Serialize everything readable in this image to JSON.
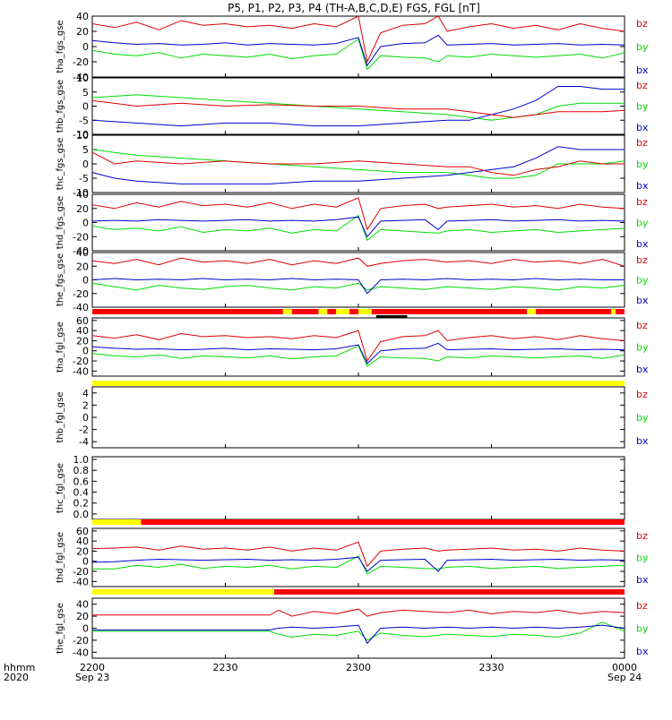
{
  "title": "P5, P1, P2, P3, P4 (TH-A,B,C,D,E) FGS, FGL [nT]",
  "footer": {
    "row_label_1": "hhmm",
    "row_label_2": "2020",
    "date_left": "Sep 23",
    "date_right": "Sep 24"
  },
  "colors": {
    "bx": "#0000cc",
    "by": "#00dd00",
    "bz": "#dd0000",
    "bar_red": "#ff0000",
    "bar_yellow": "#ffff00",
    "axis": "#000000"
  },
  "chart_data": [
    {
      "type": "line",
      "panel": "tha_fgs_gse",
      "ylabel": "tha_fgs_gse",
      "ylim": [
        -40,
        40
      ],
      "yticks": [
        40,
        20,
        0,
        -20,
        -40
      ],
      "legend": [
        "bz",
        "by",
        "bx"
      ],
      "x_minutes": [
        0,
        5,
        10,
        15,
        20,
        25,
        30,
        35,
        40,
        45,
        50,
        55,
        60,
        62,
        65,
        70,
        75,
        78,
        80,
        85,
        90,
        95,
        100,
        105,
        110,
        115,
        120
      ],
      "series": [
        {
          "name": "bz",
          "values": [
            30,
            25,
            32,
            22,
            34,
            28,
            30,
            26,
            28,
            24,
            30,
            26,
            40,
            -20,
            18,
            28,
            30,
            40,
            20,
            26,
            30,
            24,
            28,
            22,
            30,
            24,
            20
          ]
        },
        {
          "name": "by",
          "values": [
            -5,
            -10,
            -12,
            -8,
            -15,
            -10,
            -12,
            -14,
            -10,
            -16,
            -12,
            -10,
            10,
            -30,
            -12,
            -14,
            -15,
            -20,
            -12,
            -14,
            -10,
            -12,
            -14,
            -12,
            -10,
            -15,
            -8
          ]
        },
        {
          "name": "bx",
          "values": [
            8,
            5,
            3,
            4,
            2,
            3,
            5,
            2,
            4,
            3,
            2,
            4,
            12,
            -25,
            0,
            4,
            5,
            15,
            2,
            3,
            4,
            2,
            3,
            4,
            2,
            3,
            2
          ]
        }
      ]
    },
    {
      "type": "line",
      "panel": "thb_fgs_gse",
      "ylabel": "thb_fgs_gse",
      "ylim": [
        -10,
        10
      ],
      "yticks": [
        10,
        5,
        0,
        -5,
        -10
      ],
      "legend": [
        "bz",
        "by",
        "bx"
      ],
      "x_minutes": [
        0,
        10,
        20,
        30,
        40,
        50,
        60,
        70,
        80,
        85,
        90,
        95,
        100,
        105,
        110,
        115,
        120
      ],
      "series": [
        {
          "name": "bz",
          "values": [
            2,
            0,
            1,
            0,
            0.5,
            0,
            0,
            -1,
            -1,
            -2,
            -3,
            -4,
            -3,
            -2,
            -2,
            -2,
            -1.5
          ]
        },
        {
          "name": "by",
          "values": [
            3,
            4,
            3,
            2,
            1,
            0,
            -1,
            -2,
            -3,
            -4,
            -5,
            -4,
            -3,
            0,
            1,
            1,
            1
          ]
        },
        {
          "name": "bx",
          "values": [
            -5,
            -6,
            -7,
            -6,
            -6,
            -7,
            -7,
            -6,
            -5,
            -5,
            -3,
            -1,
            2,
            7,
            7,
            6,
            6
          ]
        }
      ]
    },
    {
      "type": "line",
      "panel": "thc_fgs_gse",
      "ylabel": "thc_fgs_gse",
      "ylim": [
        -10,
        10
      ],
      "yticks": [
        10,
        5,
        0,
        -5,
        -10
      ],
      "legend": [
        "bz",
        "by",
        "bx"
      ],
      "x_minutes": [
        0,
        5,
        10,
        20,
        30,
        40,
        50,
        60,
        70,
        80,
        85,
        90,
        95,
        100,
        105,
        110,
        115,
        120
      ],
      "series": [
        {
          "name": "bz",
          "values": [
            4,
            0,
            1,
            0,
            1,
            0,
            0,
            1,
            0,
            -1,
            -1,
            -3,
            -4,
            -2,
            -1,
            1,
            0,
            0
          ]
        },
        {
          "name": "by",
          "values": [
            5,
            4,
            3,
            2,
            1,
            0,
            -1,
            -2,
            -3,
            -3,
            -4,
            -5,
            -5,
            -4,
            0,
            0,
            0,
            1
          ]
        },
        {
          "name": "bx",
          "values": [
            -3,
            -5,
            -6,
            -7,
            -7,
            -7,
            -6,
            -6,
            -5,
            -4,
            -3,
            -2,
            -1,
            2,
            6,
            5,
            5,
            5
          ]
        }
      ]
    },
    {
      "type": "line",
      "panel": "thd_fgs_gse",
      "ylabel": "thd_fgs_gse",
      "ylim": [
        -40,
        40
      ],
      "yticks": [
        40,
        20,
        0,
        -20,
        -40
      ],
      "legend": [
        "bz",
        "by",
        "bx"
      ],
      "x_minutes": [
        0,
        5,
        10,
        15,
        20,
        25,
        30,
        35,
        40,
        45,
        50,
        55,
        60,
        62,
        65,
        70,
        75,
        78,
        80,
        85,
        90,
        95,
        100,
        105,
        110,
        115,
        120
      ],
      "series": [
        {
          "name": "bz",
          "values": [
            25,
            20,
            28,
            22,
            30,
            24,
            26,
            22,
            28,
            20,
            26,
            22,
            35,
            -10,
            20,
            24,
            26,
            20,
            22,
            24,
            26,
            22,
            24,
            20,
            26,
            22,
            20
          ]
        },
        {
          "name": "by",
          "values": [
            -5,
            -10,
            -8,
            -12,
            -6,
            -14,
            -10,
            -12,
            -8,
            -15,
            -10,
            -12,
            10,
            -25,
            -10,
            -12,
            -14,
            -15,
            -12,
            -10,
            -14,
            -12,
            -10,
            -14,
            -12,
            -10,
            -8
          ]
        },
        {
          "name": "bx",
          "values": [
            2,
            3,
            2,
            4,
            3,
            2,
            3,
            4,
            2,
            3,
            2,
            4,
            8,
            -20,
            2,
            3,
            4,
            -10,
            2,
            3,
            4,
            2,
            3,
            4,
            2,
            3,
            2
          ]
        }
      ]
    },
    {
      "type": "line",
      "panel": "the_fgs_gse",
      "ylabel": "the_fgs_gse",
      "ylim": [
        -40,
        40
      ],
      "yticks": [
        40,
        20,
        0,
        -20,
        -40
      ],
      "legend": [
        "bz",
        "by",
        "bx"
      ],
      "x_minutes": [
        0,
        5,
        10,
        15,
        20,
        25,
        30,
        35,
        40,
        45,
        50,
        55,
        60,
        62,
        65,
        70,
        75,
        80,
        85,
        90,
        95,
        100,
        105,
        110,
        115,
        120
      ],
      "series": [
        {
          "name": "bz",
          "values": [
            28,
            24,
            30,
            22,
            32,
            26,
            28,
            24,
            30,
            22,
            28,
            24,
            32,
            20,
            24,
            28,
            30,
            26,
            28,
            24,
            30,
            26,
            28,
            24,
            30,
            20
          ]
        },
        {
          "name": "by",
          "values": [
            -5,
            -10,
            -15,
            -8,
            -12,
            -14,
            -10,
            -8,
            -12,
            -15,
            -10,
            -12,
            -5,
            -15,
            -10,
            -12,
            -14,
            -10,
            -12,
            -14,
            -10,
            -12,
            -15,
            -10,
            -12,
            -8
          ]
        },
        {
          "name": "bx",
          "values": [
            0,
            2,
            0,
            1,
            0,
            2,
            0,
            1,
            0,
            2,
            0,
            1,
            0,
            -20,
            0,
            1,
            0,
            2,
            0,
            1,
            0,
            2,
            0,
            1,
            0,
            0
          ]
        }
      ]
    },
    {
      "type": "line",
      "panel": "tha_fgl_gse",
      "ylabel": "tha_fgl_gse",
      "ylim": [
        -50,
        65
      ],
      "yticks": [
        60,
        40,
        20,
        0,
        -20,
        -40
      ],
      "legend": [
        "bz",
        "by",
        "bx"
      ],
      "x_minutes": [
        0,
        5,
        10,
        15,
        20,
        25,
        30,
        35,
        40,
        45,
        50,
        55,
        60,
        62,
        65,
        70,
        75,
        78,
        80,
        85,
        90,
        95,
        100,
        105,
        110,
        115,
        120
      ],
      "series": [
        {
          "name": "bz",
          "values": [
            30,
            25,
            32,
            22,
            34,
            28,
            30,
            26,
            28,
            24,
            30,
            26,
            40,
            -20,
            18,
            28,
            30,
            40,
            20,
            26,
            30,
            24,
            28,
            22,
            30,
            24,
            20
          ]
        },
        {
          "name": "by",
          "values": [
            -5,
            -10,
            -12,
            -8,
            -15,
            -10,
            -12,
            -14,
            -10,
            -16,
            -12,
            -10,
            10,
            -30,
            -12,
            -14,
            -15,
            -20,
            -12,
            -14,
            -10,
            -12,
            -14,
            -12,
            -10,
            -15,
            -8
          ]
        },
        {
          "name": "bx",
          "values": [
            8,
            5,
            3,
            4,
            2,
            3,
            5,
            2,
            4,
            3,
            2,
            4,
            12,
            -25,
            0,
            4,
            5,
            15,
            2,
            3,
            4,
            2,
            3,
            4,
            2,
            3,
            2
          ]
        }
      ]
    },
    {
      "type": "line",
      "panel": "thb_fgl_gse",
      "ylabel": "thb_fgl_gse",
      "ylim": [
        -5,
        5
      ],
      "yticks": [
        4,
        2,
        0,
        -2,
        -4
      ],
      "legend": [
        "bz",
        "by",
        "bx"
      ],
      "x_minutes": [],
      "series": []
    },
    {
      "type": "line",
      "panel": "thc_fgl_gse",
      "ylabel": "thc_fgl_gse",
      "ylim": [
        -0.1,
        1.05
      ],
      "yticks": [
        1.0,
        0.8,
        0.6,
        0.4,
        0.2,
        0.0
      ],
      "legend": [],
      "x_minutes": [],
      "series": []
    },
    {
      "type": "line",
      "panel": "thd_fgl_gse",
      "ylabel": "thd_fgl_gse",
      "ylim": [
        -50,
        65
      ],
      "yticks": [
        60,
        40,
        20,
        0,
        -20,
        -40
      ],
      "legend": [
        "bz",
        "by",
        "bx"
      ],
      "x_minutes": [
        0,
        5,
        10,
        15,
        20,
        25,
        30,
        35,
        40,
        45,
        50,
        55,
        60,
        62,
        65,
        70,
        75,
        78,
        80,
        85,
        90,
        95,
        100,
        105,
        110,
        115,
        120
      ],
      "series": [
        {
          "name": "bz",
          "values": [
            25,
            26,
            28,
            22,
            30,
            24,
            26,
            22,
            28,
            20,
            26,
            22,
            38,
            -10,
            20,
            24,
            26,
            20,
            22,
            24,
            26,
            22,
            24,
            20,
            26,
            22,
            20
          ]
        },
        {
          "name": "by",
          "values": [
            -15,
            -15,
            -8,
            -12,
            -6,
            -14,
            -10,
            -12,
            -8,
            -15,
            -10,
            -12,
            10,
            -25,
            -10,
            -12,
            -14,
            -15,
            -12,
            -10,
            -14,
            -12,
            -10,
            -14,
            -12,
            -10,
            -8
          ]
        },
        {
          "name": "bx",
          "values": [
            -2,
            -1,
            2,
            4,
            3,
            2,
            3,
            4,
            2,
            3,
            2,
            4,
            8,
            -20,
            2,
            3,
            4,
            -20,
            2,
            3,
            4,
            2,
            3,
            4,
            2,
            3,
            2
          ]
        }
      ]
    },
    {
      "type": "line",
      "panel": "the_fgl_gse",
      "ylabel": "the_fgl_gse",
      "ylim": [
        -50,
        50
      ],
      "yticks": [
        40,
        20,
        0,
        -20,
        -40
      ],
      "legend": [
        "bz",
        "by",
        "bx"
      ],
      "x_minutes": [
        0,
        10,
        20,
        30,
        40,
        42,
        45,
        50,
        55,
        60,
        62,
        65,
        70,
        75,
        80,
        85,
        90,
        95,
        100,
        105,
        110,
        115,
        120
      ],
      "series": [
        {
          "name": "bz",
          "values": [
            22,
            22,
            22,
            22,
            22,
            30,
            20,
            28,
            24,
            32,
            20,
            26,
            30,
            28,
            26,
            30,
            24,
            28,
            26,
            30,
            24,
            28,
            26
          ]
        },
        {
          "name": "by",
          "values": [
            -5,
            -5,
            -5,
            -5,
            -5,
            -10,
            -15,
            -10,
            -12,
            -5,
            -20,
            -8,
            -12,
            -14,
            -10,
            -12,
            -14,
            -10,
            -12,
            -15,
            -8,
            10,
            -5
          ]
        },
        {
          "name": "bx",
          "values": [
            -3,
            -3,
            -3,
            -3,
            -3,
            0,
            2,
            0,
            2,
            5,
            -25,
            0,
            2,
            0,
            2,
            0,
            2,
            0,
            2,
            0,
            2,
            5,
            0
          ]
        }
      ]
    }
  ],
  "mode_bars": [
    {
      "name": "tha-fgl-mode-bar",
      "segments": [
        {
          "from": 0,
          "to": 43,
          "color": "red"
        },
        {
          "from": 43,
          "to": 45,
          "color": "yellow"
        },
        {
          "from": 45,
          "to": 51,
          "color": "red"
        },
        {
          "from": 51,
          "to": 53,
          "color": "yellow"
        },
        {
          "from": 53,
          "to": 55,
          "color": "red"
        },
        {
          "from": 55,
          "to": 58,
          "color": "yellow"
        },
        {
          "from": 58,
          "to": 60,
          "color": "red"
        },
        {
          "from": 60,
          "to": 63,
          "color": "yellow"
        },
        {
          "from": 63,
          "to": 98,
          "color": "red"
        },
        {
          "from": 98,
          "to": 100,
          "color": "yellow"
        },
        {
          "from": 100,
          "to": 117,
          "color": "red"
        },
        {
          "from": 117,
          "to": 118,
          "color": "yellow"
        },
        {
          "from": 118,
          "to": 120,
          "color": "red"
        }
      ]
    },
    {
      "name": "thb-fgl-mode-bar",
      "segments": [
        {
          "from": 0,
          "to": 120,
          "color": "yellow"
        }
      ]
    },
    {
      "name": "thd-fgl-mode-bar",
      "segments": [
        {
          "from": 0,
          "to": 11,
          "color": "yellow"
        },
        {
          "from": 11,
          "to": 120,
          "color": "red"
        }
      ]
    },
    {
      "name": "the-fgl-mode-bar",
      "segments": [
        {
          "from": 0,
          "to": 41,
          "color": "yellow"
        },
        {
          "from": 41,
          "to": 120,
          "color": "red"
        }
      ]
    }
  ],
  "x_axis": {
    "ticks": [
      {
        "minute": 0,
        "label": "2200"
      },
      {
        "minute": 30,
        "label": "2230"
      },
      {
        "minute": 60,
        "label": "2300"
      },
      {
        "minute": 90,
        "label": "2330"
      },
      {
        "minute": 120,
        "label": "0000"
      }
    ]
  }
}
